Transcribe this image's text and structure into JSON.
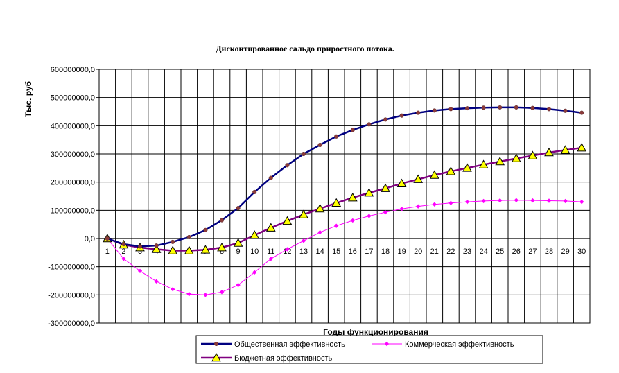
{
  "chart_data": {
    "type": "line",
    "title": "Дисконтированное сальдо приростного потока.",
    "xlabel": "Годы  функционирования",
    "ylabel": "Тыс. руб",
    "categories": [
      "1",
      "2",
      "3",
      "4",
      "5",
      "6",
      "7",
      "8",
      "9",
      "10",
      "11",
      "12",
      "13",
      "14",
      "15",
      "16",
      "17",
      "18",
      "19",
      "20",
      "21",
      "22",
      "23",
      "24",
      "25",
      "26",
      "27",
      "28",
      "29",
      "30"
    ],
    "ylim": [
      -300000000,
      600000000
    ],
    "ytick_step": 100000000,
    "yticks": [
      "-300000000,0",
      "-200000000,0",
      "-100000000,0",
      "0,0",
      "100000000,0",
      "200000000,0",
      "300000000,0",
      "400000000,0",
      "500000000,0",
      "600000000,0"
    ],
    "grid": true,
    "legend_position": "bottom",
    "series": [
      {
        "name": "Общественная эффективность",
        "color": "#000080",
        "marker": "dot",
        "marker_color": "#8B3A3A",
        "values": [
          0,
          -20000000,
          -28000000,
          -25000000,
          -12000000,
          5000000,
          30000000,
          65000000,
          108000000,
          165000000,
          215000000,
          260000000,
          300000000,
          332000000,
          362000000,
          385000000,
          405000000,
          422000000,
          436000000,
          446000000,
          454000000,
          459000000,
          462000000,
          464000000,
          465000000,
          465000000,
          463000000,
          459000000,
          453000000,
          446000000
        ]
      },
      {
        "name": "Коммерческая эффективность",
        "color": "#FF00FF",
        "marker": "diamond",
        "marker_color": "#FF00FF",
        "values": [
          0,
          -72000000,
          -115000000,
          -152000000,
          -180000000,
          -197000000,
          -200000000,
          -190000000,
          -165000000,
          -120000000,
          -72000000,
          -38000000,
          -8000000,
          22000000,
          45000000,
          64000000,
          80000000,
          93000000,
          105000000,
          114000000,
          121000000,
          126000000,
          130000000,
          133000000,
          135000000,
          136000000,
          135000000,
          134000000,
          133000000,
          130000000
        ]
      },
      {
        "name": "Бюджетная эффективность",
        "color": "#800080",
        "marker": "triangle",
        "marker_color": "#FFFF00",
        "values": [
          0,
          -22000000,
          -32000000,
          -38000000,
          -43000000,
          -43000000,
          -40000000,
          -32000000,
          -16000000,
          12000000,
          38000000,
          62000000,
          85000000,
          106000000,
          126000000,
          145000000,
          162000000,
          178000000,
          195000000,
          210000000,
          225000000,
          238000000,
          250000000,
          262000000,
          273000000,
          284000000,
          294000000,
          305000000,
          314000000,
          322000000
        ]
      }
    ]
  }
}
